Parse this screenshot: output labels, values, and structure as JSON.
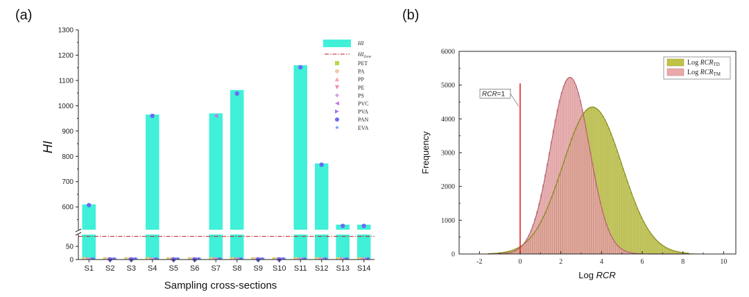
{
  "chart_data": [
    {
      "panel_label": "(a)",
      "type": "bar",
      "xlabel": "Sampling cross-sections",
      "ylabel": "HI",
      "categories": [
        "S1",
        "S2",
        "S3",
        "S4",
        "S5",
        "S6",
        "S7",
        "S8",
        "S9",
        "S10",
        "S11",
        "S12",
        "S13",
        "S14"
      ],
      "series": [
        {
          "name": "HI",
          "kind": "bar",
          "color": "#40F0D8",
          "values": [
            610,
            0.5,
            0.5,
            965,
            0.5,
            0.5,
            970,
            1062,
            0.5,
            0.5,
            1160,
            772,
            530,
            530
          ]
        },
        {
          "name": "PAN",
          "kind": "marker",
          "color": "#6A6AF2",
          "marker": "circle",
          "values": [
            607,
            0.3,
            0.3,
            960,
            0.3,
            0.3,
            null,
            1048,
            0.3,
            0.3,
            1152,
            767,
            525,
            525
          ]
        },
        {
          "name": "PVC",
          "kind": "marker",
          "color": "#C47AE0",
          "marker": "triangle-left",
          "values": [
            null,
            null,
            null,
            null,
            null,
            null,
            960,
            null,
            null,
            null,
            null,
            null,
            null,
            null
          ]
        }
      ],
      "hi_line_label": "HI",
      "hi_line_subscript": "Zone",
      "hi_line_value": 88,
      "legend_entries": [
        {
          "label": "PET",
          "color": "#B8D840",
          "marker": "square"
        },
        {
          "label": "PA",
          "color": "#F4C9B0",
          "marker": "circle"
        },
        {
          "label": "PP",
          "color": "#F4A6A6",
          "marker": "triangle-up"
        },
        {
          "label": "PE",
          "color": "#F08AAA",
          "marker": "triangle-down"
        },
        {
          "label": "PS",
          "color": "#D8A0E0",
          "marker": "diamond"
        },
        {
          "label": "PVC",
          "color": "#C47AE0",
          "marker": "triangle-left"
        },
        {
          "label": "PVA",
          "color": "#9A7AF0",
          "marker": "triangle-right"
        },
        {
          "label": "PAN",
          "color": "#6A6AF2",
          "marker": "circle"
        },
        {
          "label": "EVA",
          "color": "#6A9AF2",
          "marker": "star"
        }
      ],
      "legend_position": "top-right",
      "ylim_lower": [
        0,
        95
      ],
      "ylim_upper": [
        510,
        1300
      ],
      "yticks_lower": [
        0,
        50
      ],
      "yticks_upper": [
        600,
        700,
        800,
        900,
        1000,
        1100,
        1200,
        1300
      ],
      "axis_break": true
    },
    {
      "panel_label": "(b)",
      "type": "histogram",
      "xlabel_prefix": "Log ",
      "xlabel_italic": "RCR",
      "ylabel": "Frequency",
      "xlim": [
        -3,
        10.6
      ],
      "ylim": [
        0,
        6000
      ],
      "xticks": [
        -2,
        0,
        2,
        4,
        6,
        8,
        10
      ],
      "yticks": [
        0,
        1000,
        2000,
        3000,
        4000,
        5000,
        6000
      ],
      "series": [
        {
          "name_prefix": "Log ",
          "name_italic": "RCR",
          "name_sub": "TD",
          "color": "#BFC247",
          "curve_color": "#858C18",
          "mean": 3.55,
          "sd": 1.45,
          "peak": 4350,
          "bin_width": 0.1
        },
        {
          "name_prefix": "Log ",
          "name_italic": "RCR",
          "name_sub": "TM",
          "color": "#E9A9A9",
          "curve_color": "#B5646E",
          "mean": 2.45,
          "sd": 0.95,
          "peak": 5230,
          "bin_width": 0.1
        }
      ],
      "reference_line": {
        "x": 0,
        "color": "#E02020",
        "label_italic": "RCR",
        "label_rest": "=1"
      },
      "legend_position": "top-right"
    }
  ]
}
